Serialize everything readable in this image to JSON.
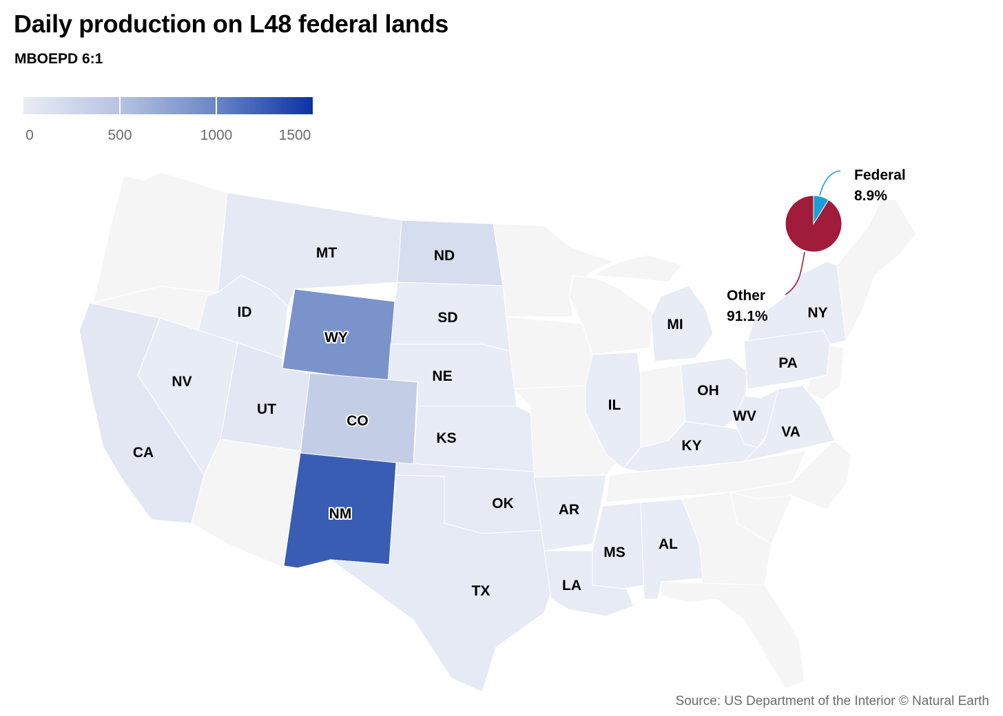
{
  "title": "Daily production on L48 federal lands",
  "subtitle": "MBOEPD 6:1",
  "source": "Source: US Department of the Interior © Natural Earth",
  "colors": {
    "no_data": "#f5f5f5",
    "scale_low": "#e8ecf5",
    "scale_high": "#0a33a2",
    "federal": "#1a9fd8",
    "other": "#a01c3a"
  },
  "legend": {
    "ticks": [
      0,
      500,
      1000,
      1500
    ],
    "min": 0,
    "max": 1500
  },
  "states": [
    {
      "code": "MT",
      "value": 40
    },
    {
      "code": "ND",
      "value": 180
    },
    {
      "code": "WY",
      "value": 900
    },
    {
      "code": "SD",
      "value": 5
    },
    {
      "code": "ID",
      "value": 1
    },
    {
      "code": "NE",
      "value": 3
    },
    {
      "code": "NV",
      "value": 2
    },
    {
      "code": "UT",
      "value": 60
    },
    {
      "code": "CO",
      "value": 380
    },
    {
      "code": "KS",
      "value": 8
    },
    {
      "code": "CA",
      "value": 60
    },
    {
      "code": "NM",
      "value": 1250
    },
    {
      "code": "OK",
      "value": 20
    },
    {
      "code": "TX",
      "value": 30
    },
    {
      "code": "AR",
      "value": 5
    },
    {
      "code": "LA",
      "value": 15
    },
    {
      "code": "MS",
      "value": 10
    },
    {
      "code": "AL",
      "value": 5
    },
    {
      "code": "IL",
      "value": 1
    },
    {
      "code": "MI",
      "value": 5
    },
    {
      "code": "OH",
      "value": 2
    },
    {
      "code": "KY",
      "value": 2
    },
    {
      "code": "WV",
      "value": 5
    },
    {
      "code": "VA",
      "value": 2
    },
    {
      "code": "PA",
      "value": 5
    },
    {
      "code": "NY",
      "value": 1
    }
  ],
  "pie": {
    "slices": [
      {
        "name": "Federal",
        "percent": 8.9,
        "label": "8.9%"
      },
      {
        "name": "Other",
        "percent": 91.1,
        "label": "91.1%"
      }
    ]
  }
}
